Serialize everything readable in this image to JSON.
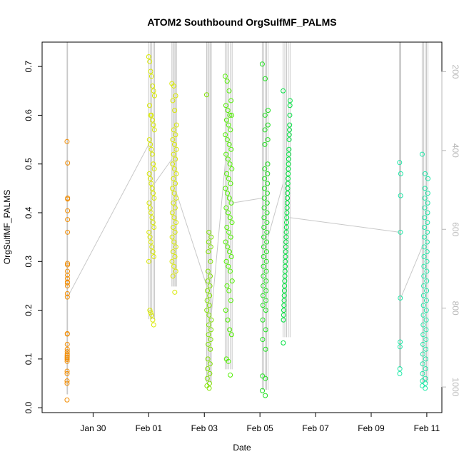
{
  "chart_data": {
    "type": "scatter",
    "title": "ATOM2 Southbound OrgSulfMF_PALMS",
    "xlabel": "Date",
    "ylabel": "OrgSulfMF_PALMS",
    "xlim": [
      "2017-01-28T04:00",
      "2017-02-11T13:00"
    ],
    "ylim": [
      -0.01,
      0.75
    ],
    "x_ticks": [
      {
        "date": "2017-01-30",
        "label": "Jan 30"
      },
      {
        "date": "2017-02-01",
        "label": "Feb 01"
      },
      {
        "date": "2017-02-03",
        "label": "Feb 03"
      },
      {
        "date": "2017-02-05",
        "label": "Feb 05"
      },
      {
        "date": "2017-02-07",
        "label": "Feb 07"
      },
      {
        "date": "2017-02-09",
        "label": "Feb 09"
      },
      {
        "date": "2017-02-11",
        "label": "Feb 11"
      }
    ],
    "y_ticks": [
      "0.0",
      "0.1",
      "0.2",
      "0.3",
      "0.4",
      "0.5",
      "0.6",
      "0.7"
    ],
    "right_axis": {
      "ylim": [
        1065,
        125
      ],
      "reversed": true,
      "ticks": [
        "200",
        "400",
        "600",
        "800",
        "1000"
      ],
      "color": "#b8b8b8"
    },
    "marker": "open-circle",
    "grid": false,
    "legend": "none",
    "pressure_trace_color": "#c8c8c8",
    "series": [
      {
        "color": "#f28c00",
        "start": "2017-01-29T01:30",
        "end": "2017-01-29T02:00",
        "values": [
          0.546,
          0.502,
          0.43,
          0.428,
          0.404,
          0.386,
          0.36,
          0.296,
          0.293,
          0.28,
          0.272,
          0.265,
          0.258,
          0.256,
          0.25,
          0.234,
          0.227,
          0.152,
          0.151,
          0.13,
          0.12,
          0.115,
          0.11,
          0.107,
          0.104,
          0.102,
          0.099,
          0.095,
          0.075,
          0.07,
          0.055,
          0.05,
          0.016
        ]
      },
      {
        "color": "#d8e800",
        "start": "2017-02-01T00:00",
        "end": "2017-02-01T05:00",
        "values": [
          0.72,
          0.71,
          0.69,
          0.68,
          0.66,
          0.65,
          0.64,
          0.62,
          0.6,
          0.6,
          0.59,
          0.58,
          0.57,
          0.55,
          0.54,
          0.53,
          0.52,
          0.5,
          0.49,
          0.48,
          0.47,
          0.46,
          0.45,
          0.44,
          0.43,
          0.42,
          0.41,
          0.4,
          0.39,
          0.38,
          0.37,
          0.36,
          0.35,
          0.34,
          0.33,
          0.32,
          0.31,
          0.3,
          0.2,
          0.195,
          0.19,
          0.18,
          0.17
        ]
      },
      {
        "color": "#d8e800",
        "start": "2017-02-01T20:00",
        "end": "2017-02-02T00:00",
        "values": [
          0.665,
          0.66,
          0.64,
          0.63,
          0.61,
          0.58,
          0.57,
          0.56,
          0.55,
          0.54,
          0.53,
          0.52,
          0.51,
          0.5,
          0.49,
          0.48,
          0.47,
          0.46,
          0.45,
          0.44,
          0.43,
          0.42,
          0.41,
          0.4,
          0.39,
          0.38,
          0.37,
          0.36,
          0.35,
          0.34,
          0.33,
          0.32,
          0.31,
          0.3,
          0.29,
          0.28,
          0.27,
          0.237
        ]
      },
      {
        "color": "#80e000",
        "start": "2017-02-03T02:00",
        "end": "2017-02-03T06:00",
        "values": [
          0.642,
          0.36,
          0.35,
          0.34,
          0.33,
          0.32,
          0.3,
          0.28,
          0.27,
          0.26,
          0.25,
          0.24,
          0.23,
          0.22,
          0.21,
          0.2,
          0.19,
          0.18,
          0.17,
          0.16,
          0.15,
          0.14,
          0.13,
          0.12,
          0.1,
          0.09,
          0.08,
          0.07,
          0.06,
          0.05,
          0.045,
          0.04
        ]
      },
      {
        "color": "#50ee00",
        "start": "2017-02-03T18:00",
        "end": "2017-02-04T00:00",
        "values": [
          0.68,
          0.67,
          0.65,
          0.63,
          0.62,
          0.61,
          0.6,
          0.6,
          0.59,
          0.58,
          0.57,
          0.56,
          0.55,
          0.54,
          0.53,
          0.52,
          0.51,
          0.5,
          0.49,
          0.48,
          0.47,
          0.46,
          0.45,
          0.44,
          0.43,
          0.42,
          0.41,
          0.4,
          0.39,
          0.38,
          0.37,
          0.36,
          0.35,
          0.34,
          0.33,
          0.32,
          0.31,
          0.3,
          0.29,
          0.28,
          0.26,
          0.25,
          0.24,
          0.22,
          0.2,
          0.18,
          0.16,
          0.15,
          0.1,
          0.095,
          0.067
        ]
      },
      {
        "color": "#20e020",
        "start": "2017-02-05T02:00",
        "end": "2017-02-05T07:00",
        "values": [
          0.705,
          0.675,
          0.61,
          0.6,
          0.58,
          0.57,
          0.55,
          0.54,
          0.5,
          0.49,
          0.48,
          0.47,
          0.46,
          0.45,
          0.44,
          0.43,
          0.42,
          0.41,
          0.4,
          0.39,
          0.38,
          0.37,
          0.36,
          0.35,
          0.34,
          0.33,
          0.32,
          0.31,
          0.3,
          0.29,
          0.28,
          0.27,
          0.26,
          0.25,
          0.24,
          0.23,
          0.22,
          0.21,
          0.2,
          0.18,
          0.16,
          0.14,
          0.12,
          0.065,
          0.06,
          0.035,
          0.025
        ]
      },
      {
        "color": "#00e040",
        "start": "2017-02-05T20:00",
        "end": "2017-02-06T02:00",
        "values": [
          0.65,
          0.63,
          0.62,
          0.6,
          0.58,
          0.57,
          0.56,
          0.55,
          0.53,
          0.52,
          0.51,
          0.5,
          0.49,
          0.48,
          0.47,
          0.46,
          0.45,
          0.44,
          0.43,
          0.42,
          0.41,
          0.4,
          0.39,
          0.38,
          0.37,
          0.36,
          0.35,
          0.34,
          0.33,
          0.32,
          0.31,
          0.3,
          0.29,
          0.28,
          0.27,
          0.26,
          0.25,
          0.24,
          0.23,
          0.22,
          0.21,
          0.2,
          0.19,
          0.18,
          0.133
        ]
      },
      {
        "color": "#20e8a8",
        "start": "2017-02-10T00:30",
        "end": "2017-02-10T01:30",
        "values": [
          0.503,
          0.48,
          0.435,
          0.36,
          0.225,
          0.135,
          0.125,
          0.08,
          0.07
        ]
      },
      {
        "color": "#20e8a8",
        "start": "2017-02-10T20:00",
        "end": "2017-02-11T01:00",
        "values": [
          0.52,
          0.48,
          0.47,
          0.45,
          0.44,
          0.43,
          0.42,
          0.41,
          0.4,
          0.39,
          0.38,
          0.37,
          0.36,
          0.35,
          0.34,
          0.33,
          0.32,
          0.31,
          0.3,
          0.29,
          0.28,
          0.27,
          0.26,
          0.25,
          0.24,
          0.23,
          0.22,
          0.21,
          0.2,
          0.19,
          0.18,
          0.17,
          0.16,
          0.15,
          0.14,
          0.13,
          0.12,
          0.11,
          0.1,
          0.09,
          0.08,
          0.07,
          0.06,
          0.055,
          0.05,
          0.045,
          0.04
        ]
      }
    ]
  }
}
